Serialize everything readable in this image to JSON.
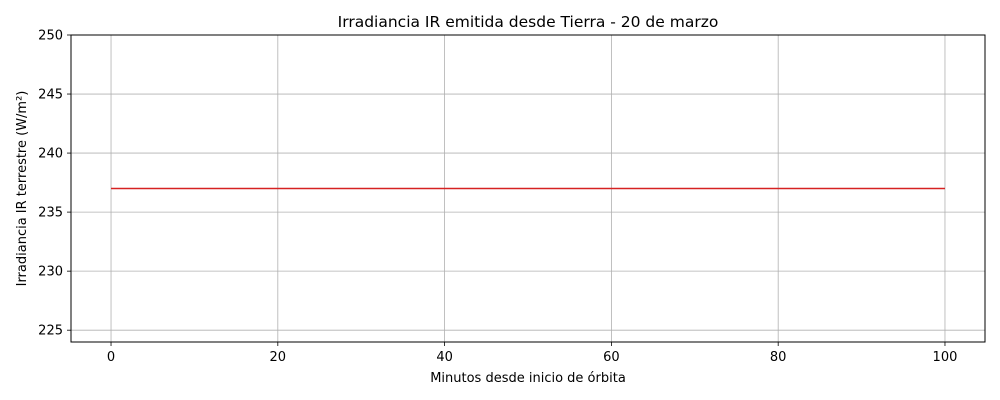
{
  "chart_data": {
    "type": "line",
    "title": "Irradiancia IR emitida desde Tierra - 20 de marzo",
    "xlabel": "Minutos desde inicio de órbita",
    "ylabel": "Irradiancia IR terrestre (W/m²)",
    "xlim": [
      -4.8,
      104.8
    ],
    "ylim": [
      224,
      250
    ],
    "xticks": [
      0,
      20,
      40,
      60,
      80,
      100
    ],
    "yticks": [
      225,
      230,
      235,
      240,
      245,
      250
    ],
    "grid": true,
    "series": [
      {
        "color": "#d62222",
        "x": [
          0,
          100
        ],
        "y": [
          237,
          237
        ]
      }
    ]
  }
}
